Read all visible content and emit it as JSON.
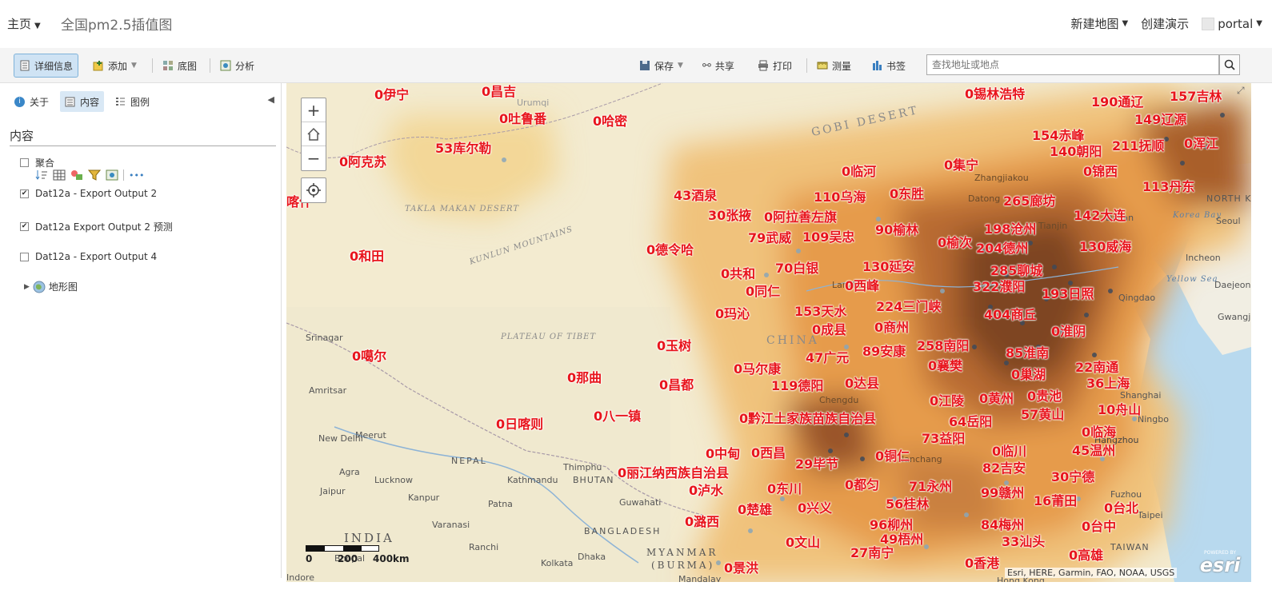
{
  "header": {
    "home": "主页",
    "title": "全国pm2.5插值图",
    "new_map": "新建地图",
    "create_presentation": "创建演示",
    "user": "portal"
  },
  "toolbar": {
    "details": "详细信息",
    "add": "添加",
    "basemap": "底图",
    "analysis": "分析",
    "save": "保存",
    "share": "共享",
    "print": "打印",
    "measure": "测量",
    "bookmarks": "书签",
    "search_placeholder": "查找地址或地点"
  },
  "panel": {
    "tabs": [
      "关于",
      "内容",
      "图例"
    ],
    "section_title": "内容",
    "layers": [
      {
        "label": "聚合",
        "checked": false
      },
      {
        "label": "Dat12a - Export Output 2",
        "checked": true
      },
      {
        "label": "Dat12a Export Output 2 预测",
        "checked": true
      },
      {
        "label": "Dat12a - Export Output 4",
        "checked": false
      }
    ],
    "basemap_layer": "地形图",
    "more": "•••"
  },
  "map": {
    "scale_labels": [
      "0",
      "200",
      "400km"
    ],
    "attribution": "Esri, HERE, Garmin, FAO, NOAA, USGS",
    "powered_by": "POWERED BY",
    "esri_logo": "esri",
    "cities": [
      {
        "t": "0伊宁"
      },
      {
        "t": "0昌吉"
      },
      {
        "t": "0锡林浩特"
      },
      {
        "t": "190通辽"
      },
      {
        "t": "157吉林"
      },
      {
        "t": "0吐鲁番"
      },
      {
        "t": "0哈密"
      },
      {
        "t": "149辽源"
      },
      {
        "t": "154赤峰"
      },
      {
        "t": "140朝阳"
      },
      {
        "t": "211抚顺"
      },
      {
        "t": "0浑江"
      },
      {
        "t": "53库尔勒"
      },
      {
        "t": "0阿克苏"
      },
      {
        "t": "0临河"
      },
      {
        "t": "0集宁"
      },
      {
        "t": "0锦西"
      },
      {
        "t": "113丹东"
      },
      {
        "t": "43酒泉"
      },
      {
        "t": "110乌海"
      },
      {
        "t": "0东胜"
      },
      {
        "t": "265廊坊"
      },
      {
        "t": "喀什"
      },
      {
        "t": "30张掖"
      },
      {
        "t": "0阿拉善左旗"
      },
      {
        "t": "142大连"
      },
      {
        "t": "79武威"
      },
      {
        "t": "109吴忠"
      },
      {
        "t": "90榆林"
      },
      {
        "t": "198沧州"
      },
      {
        "t": "0榆次"
      },
      {
        "t": "204德州"
      },
      {
        "t": "130威海"
      },
      {
        "t": "0和田"
      },
      {
        "t": "0德令哈"
      },
      {
        "t": "0共和"
      },
      {
        "t": "70白银"
      },
      {
        "t": "130延安"
      },
      {
        "t": "285聊城"
      },
      {
        "t": "0同仁"
      },
      {
        "t": "0西峰"
      },
      {
        "t": "322濮阳"
      },
      {
        "t": "193日照"
      },
      {
        "t": "0玛沁"
      },
      {
        "t": "153天水"
      },
      {
        "t": "224三门峡"
      },
      {
        "t": "404商丘"
      },
      {
        "t": "0成县"
      },
      {
        "t": "0商州"
      },
      {
        "t": "0淮阴"
      },
      {
        "t": "0噶尔"
      },
      {
        "t": "0玉树"
      },
      {
        "t": "47广元"
      },
      {
        "t": "89安康"
      },
      {
        "t": "258南阳"
      },
      {
        "t": "85淮南"
      },
      {
        "t": "0那曲"
      },
      {
        "t": "0马尔康"
      },
      {
        "t": "0襄樊"
      },
      {
        "t": "0巢湖"
      },
      {
        "t": "22南通"
      },
      {
        "t": "0昌都"
      },
      {
        "t": "119德阳"
      },
      {
        "t": "0达县"
      },
      {
        "t": "36上海"
      },
      {
        "t": "0江陵"
      },
      {
        "t": "0黄州"
      },
      {
        "t": "0贵池"
      },
      {
        "t": "0日喀则"
      },
      {
        "t": "0八一镇"
      },
      {
        "t": "0黔江土家族苗族自治县"
      },
      {
        "t": "64岳阳"
      },
      {
        "t": "57黄山"
      },
      {
        "t": "10舟山"
      },
      {
        "t": "73益阳"
      },
      {
        "t": "0临海"
      },
      {
        "t": "0中甸"
      },
      {
        "t": "0西昌"
      },
      {
        "t": "0铜仁"
      },
      {
        "t": "0临川"
      },
      {
        "t": "45温州"
      },
      {
        "t": "29毕节"
      },
      {
        "t": "0丽江纳西族自治县"
      },
      {
        "t": "82吉安"
      },
      {
        "t": "0泸水"
      },
      {
        "t": "0东川"
      },
      {
        "t": "0都匀"
      },
      {
        "t": "71永州"
      },
      {
        "t": "30宁德"
      },
      {
        "t": "99赣州"
      },
      {
        "t": "0楚雄"
      },
      {
        "t": "0兴义"
      },
      {
        "t": "56桂林"
      },
      {
        "t": "16莆田"
      },
      {
        "t": "0台北"
      },
      {
        "t": "0潞西"
      },
      {
        "t": "96柳州"
      },
      {
        "t": "84梅州"
      },
      {
        "t": "0台中"
      },
      {
        "t": "0文山"
      },
      {
        "t": "49梧州"
      },
      {
        "t": "33汕头"
      },
      {
        "t": "27南宁"
      },
      {
        "t": "0高雄"
      },
      {
        "t": "0景洪"
      },
      {
        "t": "0香港"
      }
    ],
    "place_labels": [
      "GOBI DESERT",
      "TAKLA MAKAN DESERT",
      "KUNLUN MOUNTAINS",
      "PLATEAU OF TIBET",
      "CHINA",
      "INDIA",
      "MYANMAR",
      "(BURMA)",
      "NEPAL",
      "BHUTAN",
      "BANGLADESH",
      "NORTH KOREA",
      "Korea Bay",
      "Yellow Sea",
      "Urumqi",
      "Srinagar",
      "Amritsar",
      "New Delhi",
      "Meerut",
      "Agra",
      "Lucknow",
      "Jaipur",
      "Kanpur",
      "Patna",
      "Varanasi",
      "Ranchi",
      "Kolkata",
      "Dhaka",
      "Kathmandu",
      "Thimphu",
      "Guwahati",
      "Qingdao",
      "Shanghai",
      "Fuzhou",
      "Taipei",
      "Incheon",
      "Daejeon",
      "Hangzhou",
      "Ningbo",
      "Dalian",
      "Tianjin",
      "Zhangjiakou",
      "Datong",
      "Lanzhou",
      "Chengdu",
      "Nanchang",
      "Indore",
      "Bhopal",
      "Hong Kong",
      "Mandalay",
      "TAIWAN",
      "Seoul",
      "Gwangju"
    ]
  },
  "colors": {
    "accent": "#cfe3f4",
    "city_label": "#e8141c",
    "pm_low": "#f6dc9e",
    "pm_mid": "#e79a48",
    "pm_high": "#a5582a",
    "pm_peak": "#6e3b1e",
    "water": "#a9cde8"
  }
}
